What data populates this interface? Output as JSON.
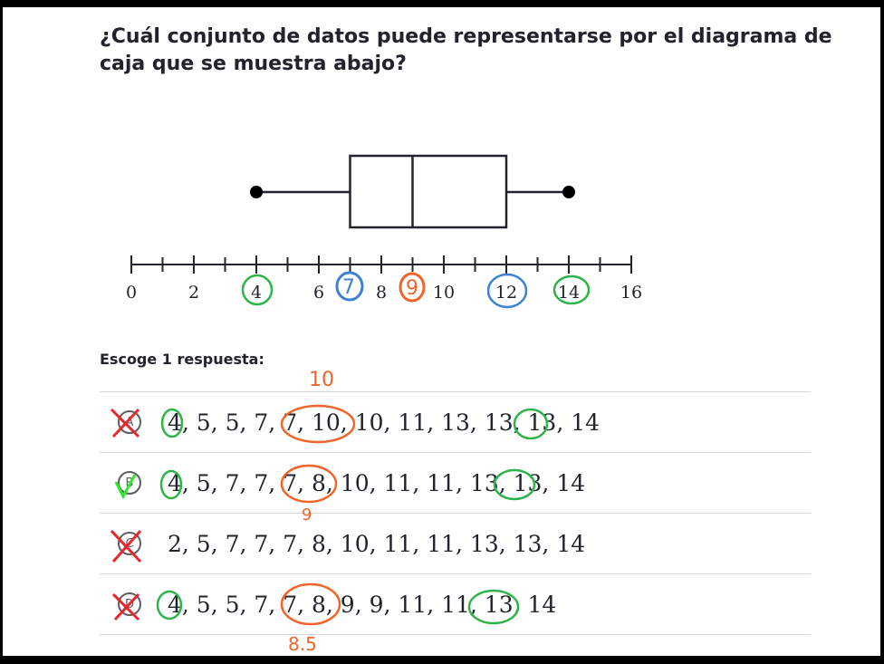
{
  "question": {
    "title": "¿Cuál conjunto de datos puede representarse por el diagrama de caja que se muestra abajo?"
  },
  "chart_data": {
    "type": "boxplot",
    "min": 4,
    "q1": 7,
    "median": 9,
    "q3": 12,
    "max": 14,
    "axis": {
      "range": [
        0,
        16
      ],
      "minor_step": 1,
      "tick_labels": [
        "0",
        "2",
        "4",
        "6",
        "8",
        "10",
        "12",
        "14",
        "16"
      ]
    }
  },
  "prompt": {
    "label": "Escoge 1 respuesta:"
  },
  "choices": [
    {
      "letter": "A",
      "text": "4, 5, 5, 7, 7, 10, 10, 11, 13, 13, 13, 14",
      "status": "crossed"
    },
    {
      "letter": "B",
      "text": "4, 5, 7, 7, 7, 8, 10, 11, 11, 13, 13, 14",
      "status": "checked"
    },
    {
      "letter": "C",
      "text": "2, 5, 7, 7, 7, 8, 10, 11, 11, 13, 13, 14",
      "status": "crossed"
    },
    {
      "letter": "D",
      "text": "4, 5, 5, 7, 7, 8, 9, 9, 11, 11, 13, 14",
      "status": "crossed"
    }
  ],
  "annotations": {
    "choice_a_note": "10",
    "choice_b_note": "9",
    "choice_d_note": "8.5",
    "axis_circle_7": "7",
    "axis_circle_9": "9"
  },
  "colors": {
    "green": "#2fb34a",
    "orange": "#f0652a",
    "blue": "#3b82d6",
    "red": "#e8262d",
    "bright_green": "#2ee82a"
  }
}
